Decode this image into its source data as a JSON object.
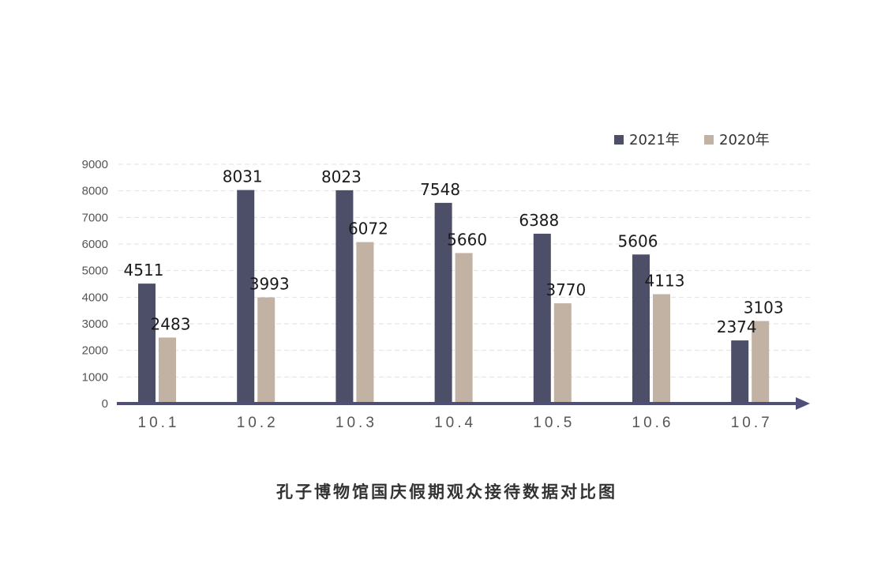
{
  "chart_data": {
    "type": "bar",
    "title": "孔子博物馆国庆假期观众接待数据对比图",
    "categories": [
      "10.1",
      "10.2",
      "10.3",
      "10.4",
      "10.5",
      "10.6",
      "10.7"
    ],
    "series": [
      {
        "name": "2021年",
        "color": "#4d4f68",
        "values": [
          4511,
          8031,
          8023,
          7548,
          6388,
          5606,
          2374
        ]
      },
      {
        "name": "2020年",
        "color": "#c2b2a4",
        "values": [
          2483,
          3993,
          6072,
          5660,
          3770,
          4113,
          3103
        ]
      }
    ],
    "yticks": [
      0,
      1000,
      2000,
      3000,
      4000,
      5000,
      6000,
      7000,
      8000,
      9000
    ],
    "ylim": [
      0,
      9000
    ],
    "grid": true,
    "legend_position": "top-right",
    "axis_color": "#4d4f7a"
  }
}
